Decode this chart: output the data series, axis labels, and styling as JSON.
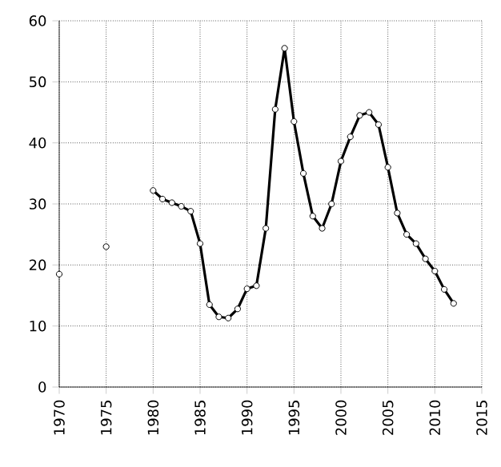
{
  "chart_data": {
    "type": "line",
    "xlim": [
      1970,
      2015
    ],
    "xticks": [
      1970,
      1975,
      1980,
      1985,
      1990,
      1995,
      2000,
      2005,
      2010,
      2015
    ],
    "ylim": [
      0,
      60
    ],
    "yticks": [
      0,
      10,
      20,
      30,
      40,
      50,
      60
    ],
    "grid": true,
    "marker": "circle",
    "line_style": "solid",
    "series": [
      {
        "type": "scatter",
        "color": "#000000",
        "x": [
          1970,
          1975
        ],
        "values": [
          18.5,
          23
        ]
      },
      {
        "color": "#000000",
        "x": [
          1980,
          1981,
          1982,
          1983,
          1984,
          1985,
          1986,
          1987,
          1988,
          1989,
          1990,
          1991,
          1992,
          1993,
          1994,
          1995,
          1996,
          1997,
          1998,
          1999,
          2000,
          2001,
          2002,
          2003,
          2004,
          2005,
          2006,
          2007,
          2008,
          2009,
          2010,
          2011,
          2012
        ],
        "values": [
          32.2,
          30.8,
          30.2,
          29.6,
          28.8,
          23.5,
          13.5,
          11.5,
          11.3,
          12.8,
          16.1,
          16.6,
          26,
          45.5,
          55.5,
          43.5,
          35,
          28,
          26,
          30,
          37,
          41,
          44.5,
          45,
          43,
          36,
          28.5,
          25,
          23.5,
          21,
          19,
          16,
          13.7
        ]
      }
    ]
  }
}
